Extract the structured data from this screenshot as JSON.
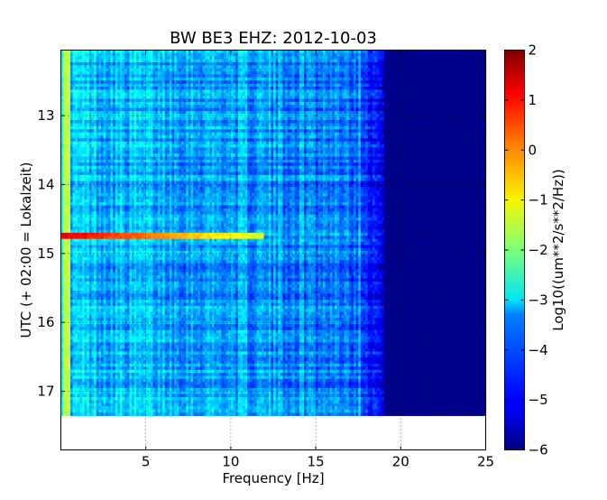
{
  "chart_data": {
    "type": "heatmap",
    "title": "BW BE3 EHZ: 2012-10-03",
    "xlabel": "Frequency [Hz]",
    "ylabel": "UTC (+ 02:00 = Lokalzeit)",
    "xlim": [
      0,
      25
    ],
    "ylim": [
      12.05,
      17.85
    ],
    "x_ticks": [
      5,
      10,
      15,
      20,
      25
    ],
    "x_tick_labels": [
      "5",
      "10",
      "15",
      "20",
      "25"
    ],
    "y_ticks": [
      13,
      14,
      15,
      16,
      17
    ],
    "y_tick_labels": [
      "13",
      "14",
      "15",
      "16",
      "17"
    ],
    "grid": true,
    "colormap": "jet",
    "colorbar": {
      "label": "Log10((um**2/s**2/Hz))",
      "range": [
        -6,
        2
      ],
      "ticks": [
        2,
        1,
        0,
        -1,
        -2,
        -3,
        -4,
        -5,
        -6
      ],
      "tick_labels": [
        "2",
        "1",
        "0",
        "−1",
        "−2",
        "−3",
        "−4",
        "−5",
        "−6"
      ]
    },
    "data_time_range": [
      12.05,
      17.35
    ],
    "features": [
      {
        "description": "strong low-frequency band",
        "freq_range": [
          0.1,
          0.6
        ],
        "level": -1.5
      },
      {
        "description": "high-power transient",
        "time": 14.75,
        "freq_range": [
          0,
          12
        ],
        "level": 1.2
      },
      {
        "description": "roll-off to background",
        "freq": 19,
        "level": -6
      }
    ]
  }
}
